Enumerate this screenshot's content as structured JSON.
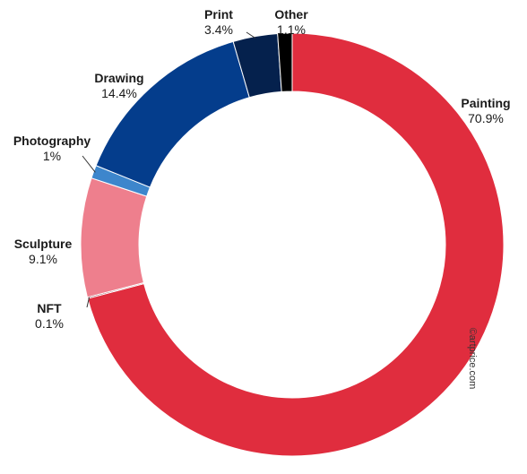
{
  "chart_data": {
    "type": "pie",
    "variant": "donut",
    "title": "",
    "slices": [
      {
        "label": "Painting",
        "value_text": "70.9%",
        "value": 70.9,
        "color": "#e02d3e"
      },
      {
        "label": "NFT",
        "value_text": "0.1%",
        "value": 0.1,
        "color": "#7a1020"
      },
      {
        "label": "Sculpture",
        "value_text": "9.1%",
        "value": 9.1,
        "color": "#ee7f8d"
      },
      {
        "label": "Photography",
        "value_text": "1%",
        "value": 1.0,
        "color": "#3d86cc"
      },
      {
        "label": "Drawing",
        "value_text": "14.4%",
        "value": 14.4,
        "color": "#043d8c"
      },
      {
        "label": "Print",
        "value_text": "3.4%",
        "value": 3.4,
        "color": "#05214d"
      },
      {
        "label": "Other",
        "value_text": "1.1%",
        "value": 1.1,
        "color": "#000000"
      }
    ],
    "watermark": "©artprice.com",
    "start": "12 o'clock",
    "direction": "clockwise"
  }
}
